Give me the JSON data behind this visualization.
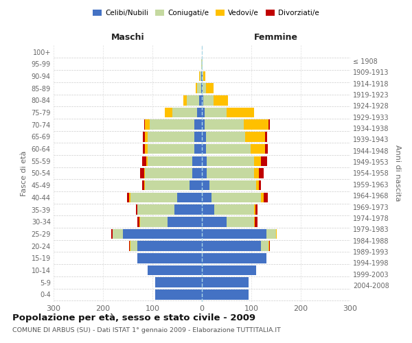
{
  "age_groups": [
    "0-4",
    "5-9",
    "10-14",
    "15-19",
    "20-24",
    "25-29",
    "30-34",
    "35-39",
    "40-44",
    "45-49",
    "50-54",
    "55-59",
    "60-64",
    "65-69",
    "70-74",
    "75-79",
    "80-84",
    "85-89",
    "90-94",
    "95-99",
    "100+"
  ],
  "birth_years": [
    "2004-2008",
    "1999-2003",
    "1994-1998",
    "1989-1993",
    "1984-1988",
    "1979-1983",
    "1974-1978",
    "1969-1973",
    "1964-1968",
    "1959-1963",
    "1954-1958",
    "1949-1953",
    "1944-1948",
    "1939-1943",
    "1934-1938",
    "1929-1933",
    "1924-1928",
    "1919-1923",
    "1914-1918",
    "1909-1913",
    "≤ 1908"
  ],
  "maschi": {
    "celibi": [
      95,
      95,
      110,
      130,
      130,
      160,
      70,
      55,
      50,
      25,
      20,
      20,
      15,
      15,
      15,
      10,
      5,
      2,
      1,
      0,
      0
    ],
    "coniugati": [
      0,
      0,
      0,
      0,
      15,
      20,
      55,
      75,
      95,
      90,
      95,
      90,
      95,
      95,
      90,
      50,
      25,
      8,
      3,
      1,
      0
    ],
    "vedovi": [
      0,
      0,
      0,
      0,
      1,
      1,
      1,
      1,
      2,
      2,
      2,
      3,
      5,
      5,
      10,
      15,
      8,
      3,
      1,
      0,
      0
    ],
    "divorziati": [
      0,
      0,
      0,
      0,
      1,
      2,
      4,
      3,
      4,
      4,
      8,
      8,
      5,
      5,
      2,
      0,
      0,
      0,
      0,
      0,
      0
    ]
  },
  "femmine": {
    "nubili": [
      95,
      95,
      110,
      130,
      120,
      130,
      50,
      25,
      20,
      15,
      10,
      10,
      8,
      8,
      5,
      5,
      3,
      2,
      1,
      0,
      0
    ],
    "coniugate": [
      0,
      0,
      0,
      0,
      15,
      20,
      55,
      80,
      100,
      95,
      95,
      95,
      90,
      80,
      80,
      45,
      20,
      6,
      2,
      1,
      0
    ],
    "vedove": [
      0,
      0,
      0,
      0,
      1,
      1,
      2,
      3,
      5,
      5,
      10,
      15,
      30,
      40,
      50,
      55,
      30,
      15,
      4,
      1,
      0
    ],
    "divorziate": [
      0,
      0,
      0,
      0,
      1,
      1,
      5,
      5,
      8,
      5,
      10,
      12,
      5,
      4,
      2,
      0,
      0,
      0,
      0,
      0,
      0
    ]
  },
  "colors": {
    "celibi": "#4472c4",
    "coniugati": "#c5d9a0",
    "vedovi": "#ffc000",
    "divorziati": "#c00000"
  },
  "xlim": 300,
  "title": "Popolazione per età, sesso e stato civile - 2009",
  "subtitle": "COMUNE DI ARBUS (SU) - Dati ISTAT 1° gennaio 2009 - Elaborazione TUTTITALIA.IT",
  "ylabel_left": "Fasce di età",
  "ylabel_right": "Anni di nascita",
  "xlabel_maschi": "Maschi",
  "xlabel_femmine": "Femmine",
  "bg_color": "#ffffff",
  "grid_color": "#cccccc"
}
